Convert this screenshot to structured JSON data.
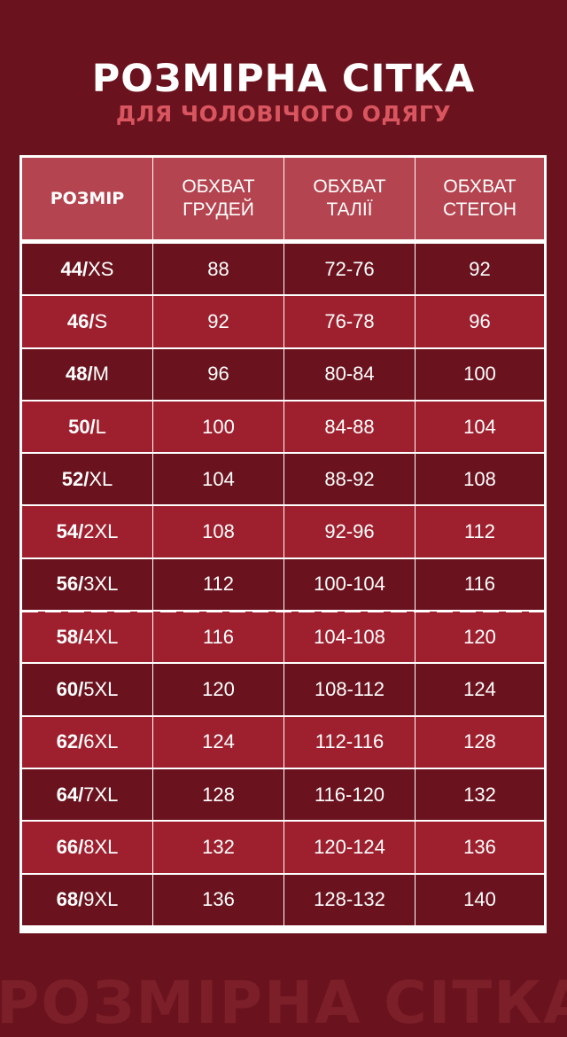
{
  "title": "РОЗМІРНА СІТКА",
  "subtitle": "ДЛЯ ЧОЛОВІЧОГО ОДЯГУ",
  "watermark": "РОЗМІРНА СІТКА",
  "colors": {
    "background": "#6a131e",
    "header": "#b4444f",
    "row_light": "#9e202e",
    "row_dark": "#6a131e",
    "subtitle": "#d9555f"
  },
  "table": {
    "headers": [
      "РОЗМІР",
      "ОБХВАТ\nГРУДЕЙ",
      "ОБХВАТ\nТАЛІЇ",
      "ОБХВАТ\nСТЕГОН"
    ],
    "rows": [
      {
        "num": "44/",
        "letter": "XS",
        "chest": "88",
        "waist": "72-76",
        "hips": "92"
      },
      {
        "num": "46/",
        "letter": "S",
        "chest": "92",
        "waist": "76-78",
        "hips": "96"
      },
      {
        "num": "48/",
        "letter": "M",
        "chest": "96",
        "waist": "80-84",
        "hips": "100"
      },
      {
        "num": "50/",
        "letter": "L",
        "chest": "100",
        "waist": "84-88",
        "hips": "104"
      },
      {
        "num": "52/",
        "letter": "XL",
        "chest": "104",
        "waist": "88-92",
        "hips": "108"
      },
      {
        "num": "54/",
        "letter": "2XL",
        "chest": "108",
        "waist": "92-96",
        "hips": "112"
      },
      {
        "num": "56/",
        "letter": "3XL",
        "chest": "112",
        "waist": "100-104",
        "hips": "116"
      },
      {
        "num": "58/",
        "letter": "4XL",
        "chest": "116",
        "waist": "104-108",
        "hips": "120"
      },
      {
        "num": "60/",
        "letter": "5XL",
        "chest": "120",
        "waist": "108-112",
        "hips": "124"
      },
      {
        "num": "62/",
        "letter": "6XL",
        "chest": "124",
        "waist": "112-116",
        "hips": "128"
      },
      {
        "num": "64/",
        "letter": "7XL",
        "chest": "128",
        "waist": "116-120",
        "hips": "132"
      },
      {
        "num": "66/",
        "letter": "8XL",
        "chest": "132",
        "waist": "120-124",
        "hips": "136"
      },
      {
        "num": "68/",
        "letter": "9XL",
        "chest": "136",
        "waist": "128-132",
        "hips": "140"
      }
    ]
  }
}
